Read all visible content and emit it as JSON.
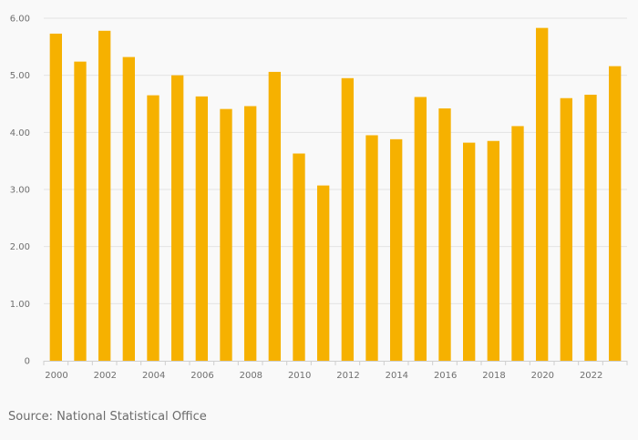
{
  "chart_data": {
    "type": "bar",
    "categories": [
      "2000",
      "2001",
      "2002",
      "2003",
      "2004",
      "2005",
      "2006",
      "2007",
      "2008",
      "2009",
      "2010",
      "2011",
      "2012",
      "2013",
      "2014",
      "2015",
      "2016",
      "2017",
      "2018",
      "2019",
      "2020",
      "2021",
      "2022",
      "2023"
    ],
    "values": [
      5.73,
      5.24,
      5.78,
      5.32,
      4.65,
      5.0,
      4.63,
      4.41,
      4.46,
      5.06,
      3.63,
      3.07,
      4.95,
      3.95,
      3.88,
      4.62,
      4.42,
      3.82,
      3.85,
      4.11,
      5.83,
      4.6,
      4.66,
      5.16
    ],
    "x_tick_labels": [
      "2000",
      "2002",
      "2004",
      "2006",
      "2008",
      "2010",
      "2012",
      "2014",
      "2016",
      "2018",
      "2020",
      "2022"
    ],
    "y_ticks": [
      0,
      1,
      2,
      3,
      4,
      5,
      6
    ],
    "y_tick_labels": [
      "0",
      "1.00",
      "2.00",
      "3.00",
      "4.00",
      "5.00",
      "6.00"
    ],
    "ylim": [
      0,
      6
    ],
    "grid": true,
    "bar_color": "#f6b100",
    "title": "",
    "xlabel": "",
    "ylabel": ""
  },
  "source_text": "Source: National Statistical Office"
}
